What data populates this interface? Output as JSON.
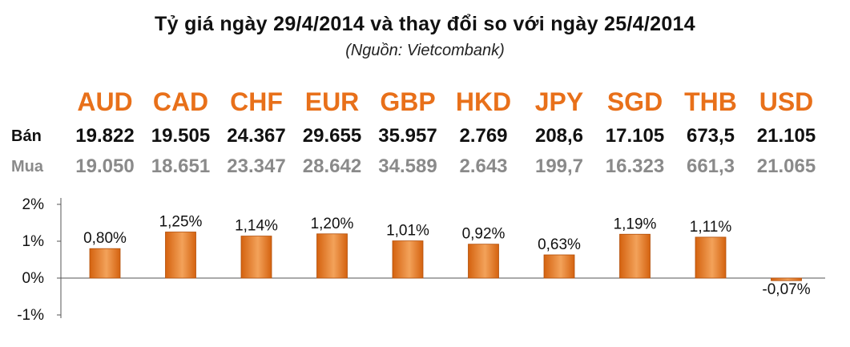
{
  "title": "Tỷ giá ngày 29/4/2014 và thay đổi so với ngày 25/4/2014",
  "subtitle": "(Nguồn: Vietcombank)",
  "row_labels": {
    "sell": "Bán",
    "buy": "Mua"
  },
  "colors": {
    "accent": "#e8701a",
    "bar": "#d4620f",
    "bar_highlight": "#f3a25a",
    "buy_text": "#8a8a8a"
  },
  "chart_data": {
    "type": "bar",
    "title": "Tỷ giá ngày 29/4/2014 và thay đổi so với ngày 25/4/2014",
    "subtitle": "(Nguồn: Vietcombank)",
    "categories": [
      "AUD",
      "CAD",
      "CHF",
      "EUR",
      "GBP",
      "HKD",
      "JPY",
      "SGD",
      "THB",
      "USD"
    ],
    "sell": [
      "19.822",
      "19.505",
      "24.367",
      "29.655",
      "35.957",
      "2.769",
      "208,6",
      "17.105",
      "673,5",
      "21.105"
    ],
    "buy": [
      "19.050",
      "18.651",
      "23.347",
      "28.642",
      "34.589",
      "2.643",
      "199,7",
      "16.323",
      "661,3",
      "21.065"
    ],
    "values": [
      0.8,
      1.25,
      1.14,
      1.2,
      1.01,
      0.92,
      0.63,
      1.19,
      1.11,
      -0.07
    ],
    "value_labels": [
      "0,80%",
      "1,25%",
      "1,14%",
      "1,20%",
      "1,01%",
      "0,92%",
      "0,63%",
      "1,19%",
      "1,11%",
      "-0,07%"
    ],
    "yticks": [
      "2%",
      "1%",
      "0%",
      "-1%"
    ],
    "ylim": [
      -1,
      2
    ],
    "grid": false
  }
}
